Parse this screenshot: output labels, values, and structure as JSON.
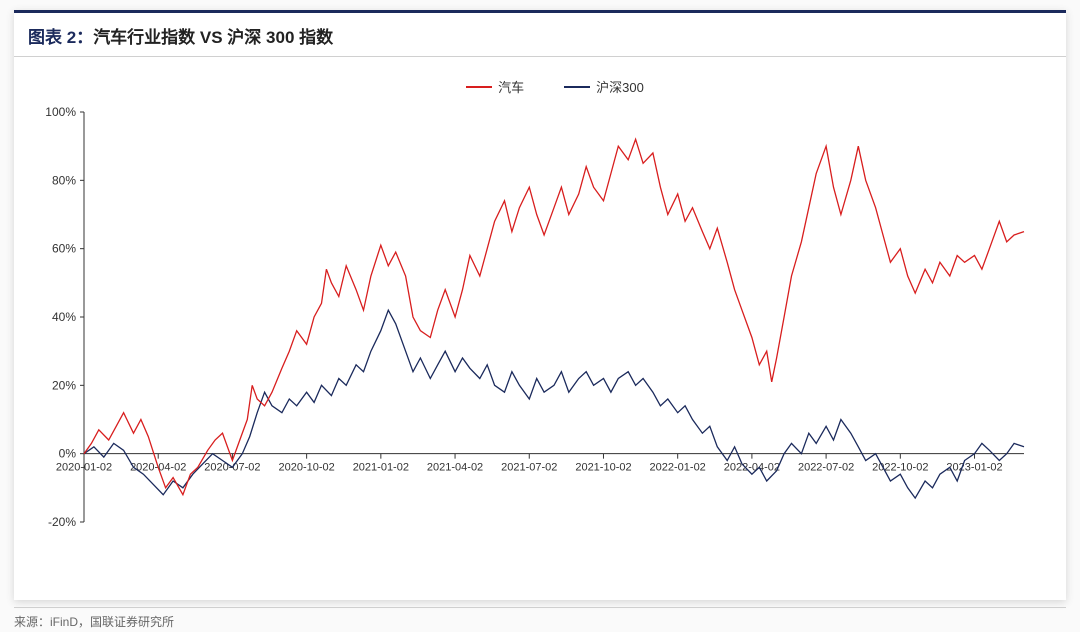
{
  "title_prefix": "图表 2：",
  "title_text": "汽车行业指数 VS 沪深 300 指数",
  "source_text": "来源：iFinD，国联证券研究所",
  "chart": {
    "type": "line",
    "background_color": "#ffffff",
    "ylim": [
      -20,
      100
    ],
    "ytick_step": 20,
    "y_ticks": [
      -20,
      0,
      20,
      40,
      60,
      80,
      100
    ],
    "y_tick_labels": [
      "-20%",
      "0%",
      "20%",
      "40%",
      "60%",
      "80%",
      "100%"
    ],
    "x_labels": [
      "2020-01-02",
      "2020-04-02",
      "2020-07-02",
      "2020-10-02",
      "2021-01-02",
      "2021-04-02",
      "2021-07-02",
      "2021-10-02",
      "2022-01-02",
      "2022-04-02",
      "2022-07-02",
      "2022-10-02",
      "2023-01-02"
    ],
    "x_range_months": 38,
    "legend": [
      {
        "label": "汽车",
        "color": "#d81e1e"
      },
      {
        "label": "沪深300",
        "color": "#1b2a5c"
      }
    ],
    "line_width": 1.3,
    "label_fontsize": 12,
    "series": {
      "auto": {
        "color": "#d81e1e",
        "points": [
          [
            0,
            0
          ],
          [
            0.3,
            3
          ],
          [
            0.6,
            7
          ],
          [
            1,
            4
          ],
          [
            1.3,
            8
          ],
          [
            1.6,
            12
          ],
          [
            2,
            6
          ],
          [
            2.3,
            10
          ],
          [
            2.6,
            5
          ],
          [
            3,
            -4
          ],
          [
            3.3,
            -10
          ],
          [
            3.6,
            -7
          ],
          [
            4,
            -12
          ],
          [
            4.3,
            -6
          ],
          [
            4.6,
            -4
          ],
          [
            5,
            1
          ],
          [
            5.3,
            4
          ],
          [
            5.6,
            6
          ],
          [
            6,
            -2
          ],
          [
            6.3,
            4
          ],
          [
            6.6,
            10
          ],
          [
            6.8,
            20
          ],
          [
            7,
            16
          ],
          [
            7.3,
            14
          ],
          [
            7.6,
            18
          ],
          [
            8,
            25
          ],
          [
            8.3,
            30
          ],
          [
            8.6,
            36
          ],
          [
            9,
            32
          ],
          [
            9.3,
            40
          ],
          [
            9.6,
            44
          ],
          [
            9.8,
            54
          ],
          [
            10,
            50
          ],
          [
            10.3,
            46
          ],
          [
            10.6,
            55
          ],
          [
            11,
            48
          ],
          [
            11.3,
            42
          ],
          [
            11.6,
            52
          ],
          [
            12,
            61
          ],
          [
            12.3,
            55
          ],
          [
            12.6,
            59
          ],
          [
            13,
            52
          ],
          [
            13.3,
            40
          ],
          [
            13.6,
            36
          ],
          [
            14,
            34
          ],
          [
            14.3,
            42
          ],
          [
            14.6,
            48
          ],
          [
            15,
            40
          ],
          [
            15.3,
            48
          ],
          [
            15.6,
            58
          ],
          [
            16,
            52
          ],
          [
            16.3,
            60
          ],
          [
            16.6,
            68
          ],
          [
            17,
            74
          ],
          [
            17.3,
            65
          ],
          [
            17.6,
            72
          ],
          [
            18,
            78
          ],
          [
            18.3,
            70
          ],
          [
            18.6,
            64
          ],
          [
            19,
            72
          ],
          [
            19.3,
            78
          ],
          [
            19.6,
            70
          ],
          [
            20,
            76
          ],
          [
            20.3,
            84
          ],
          [
            20.6,
            78
          ],
          [
            21,
            74
          ],
          [
            21.3,
            82
          ],
          [
            21.6,
            90
          ],
          [
            22,
            86
          ],
          [
            22.3,
            92
          ],
          [
            22.6,
            85
          ],
          [
            23,
            88
          ],
          [
            23.3,
            78
          ],
          [
            23.6,
            70
          ],
          [
            24,
            76
          ],
          [
            24.3,
            68
          ],
          [
            24.6,
            72
          ],
          [
            25,
            65
          ],
          [
            25.3,
            60
          ],
          [
            25.6,
            66
          ],
          [
            26,
            56
          ],
          [
            26.3,
            48
          ],
          [
            26.6,
            42
          ],
          [
            27,
            34
          ],
          [
            27.3,
            26
          ],
          [
            27.6,
            30
          ],
          [
            27.8,
            21
          ],
          [
            28,
            28
          ],
          [
            28.3,
            40
          ],
          [
            28.6,
            52
          ],
          [
            29,
            62
          ],
          [
            29.3,
            72
          ],
          [
            29.6,
            82
          ],
          [
            30,
            90
          ],
          [
            30.3,
            78
          ],
          [
            30.6,
            70
          ],
          [
            31,
            80
          ],
          [
            31.3,
            90
          ],
          [
            31.6,
            80
          ],
          [
            32,
            72
          ],
          [
            32.3,
            64
          ],
          [
            32.6,
            56
          ],
          [
            33,
            60
          ],
          [
            33.3,
            52
          ],
          [
            33.6,
            47
          ],
          [
            34,
            54
          ],
          [
            34.3,
            50
          ],
          [
            34.6,
            56
          ],
          [
            35,
            52
          ],
          [
            35.3,
            58
          ],
          [
            35.6,
            56
          ],
          [
            36,
            58
          ],
          [
            36.3,
            54
          ],
          [
            36.6,
            60
          ],
          [
            37,
            68
          ],
          [
            37.3,
            62
          ],
          [
            37.6,
            64
          ],
          [
            38,
            65
          ]
        ]
      },
      "csi300": {
        "color": "#1b2a5c",
        "points": [
          [
            0,
            0
          ],
          [
            0.4,
            2
          ],
          [
            0.8,
            -1
          ],
          [
            1.2,
            3
          ],
          [
            1.6,
            1
          ],
          [
            2,
            -4
          ],
          [
            2.4,
            -6
          ],
          [
            2.8,
            -9
          ],
          [
            3.2,
            -12
          ],
          [
            3.6,
            -8
          ],
          [
            4,
            -10
          ],
          [
            4.4,
            -6
          ],
          [
            4.8,
            -3
          ],
          [
            5.2,
            0
          ],
          [
            5.6,
            -2
          ],
          [
            6,
            -4
          ],
          [
            6.4,
            0
          ],
          [
            6.7,
            5
          ],
          [
            7,
            12
          ],
          [
            7.3,
            18
          ],
          [
            7.6,
            14
          ],
          [
            8,
            12
          ],
          [
            8.3,
            16
          ],
          [
            8.6,
            14
          ],
          [
            9,
            18
          ],
          [
            9.3,
            15
          ],
          [
            9.6,
            20
          ],
          [
            10,
            17
          ],
          [
            10.3,
            22
          ],
          [
            10.6,
            20
          ],
          [
            11,
            26
          ],
          [
            11.3,
            24
          ],
          [
            11.6,
            30
          ],
          [
            12,
            36
          ],
          [
            12.3,
            42
          ],
          [
            12.6,
            38
          ],
          [
            13,
            30
          ],
          [
            13.3,
            24
          ],
          [
            13.6,
            28
          ],
          [
            14,
            22
          ],
          [
            14.3,
            26
          ],
          [
            14.6,
            30
          ],
          [
            15,
            24
          ],
          [
            15.3,
            28
          ],
          [
            15.6,
            25
          ],
          [
            16,
            22
          ],
          [
            16.3,
            26
          ],
          [
            16.6,
            20
          ],
          [
            17,
            18
          ],
          [
            17.3,
            24
          ],
          [
            17.6,
            20
          ],
          [
            18,
            16
          ],
          [
            18.3,
            22
          ],
          [
            18.6,
            18
          ],
          [
            19,
            20
          ],
          [
            19.3,
            24
          ],
          [
            19.6,
            18
          ],
          [
            20,
            22
          ],
          [
            20.3,
            24
          ],
          [
            20.6,
            20
          ],
          [
            21,
            22
          ],
          [
            21.3,
            18
          ],
          [
            21.6,
            22
          ],
          [
            22,
            24
          ],
          [
            22.3,
            20
          ],
          [
            22.6,
            22
          ],
          [
            23,
            18
          ],
          [
            23.3,
            14
          ],
          [
            23.6,
            16
          ],
          [
            24,
            12
          ],
          [
            24.3,
            14
          ],
          [
            24.6,
            10
          ],
          [
            25,
            6
          ],
          [
            25.3,
            8
          ],
          [
            25.6,
            2
          ],
          [
            26,
            -2
          ],
          [
            26.3,
            2
          ],
          [
            26.6,
            -3
          ],
          [
            27,
            -6
          ],
          [
            27.3,
            -4
          ],
          [
            27.6,
            -8
          ],
          [
            28,
            -5
          ],
          [
            28.3,
            0
          ],
          [
            28.6,
            3
          ],
          [
            29,
            0
          ],
          [
            29.3,
            6
          ],
          [
            29.6,
            3
          ],
          [
            30,
            8
          ],
          [
            30.3,
            4
          ],
          [
            30.6,
            10
          ],
          [
            31,
            6
          ],
          [
            31.3,
            2
          ],
          [
            31.6,
            -2
          ],
          [
            32,
            0
          ],
          [
            32.3,
            -4
          ],
          [
            32.6,
            -8
          ],
          [
            33,
            -6
          ],
          [
            33.3,
            -10
          ],
          [
            33.6,
            -13
          ],
          [
            34,
            -8
          ],
          [
            34.3,
            -10
          ],
          [
            34.6,
            -6
          ],
          [
            35,
            -4
          ],
          [
            35.3,
            -8
          ],
          [
            35.6,
            -2
          ],
          [
            36,
            0
          ],
          [
            36.3,
            3
          ],
          [
            36.6,
            1
          ],
          [
            37,
            -2
          ],
          [
            37.3,
            0
          ],
          [
            37.6,
            3
          ],
          [
            38,
            2
          ]
        ]
      }
    }
  }
}
